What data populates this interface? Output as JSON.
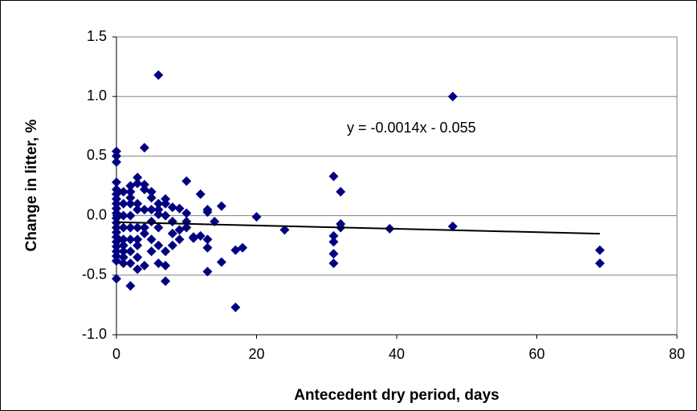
{
  "chart_data": {
    "type": "scatter",
    "x_label": "Antecedent dry period, days",
    "y_label": "Change in litter, %",
    "color": "#000080",
    "grid": true,
    "xlim": [
      0,
      80
    ],
    "xticks": [
      0,
      20,
      40,
      60,
      80
    ],
    "ylim": [
      -1,
      1.5
    ],
    "yticks": [
      {
        "value": -1,
        "label": "-1.0"
      },
      -0.5,
      {
        "value": 0,
        "label": "0.0"
      },
      0.5,
      {
        "value": 1,
        "label": "1.0"
      },
      1.5
    ],
    "trendline": {
      "label": "y = -0.0014x - 0.055",
      "slope": -0.0014,
      "intercept": -0.055
    },
    "series": [
      {
        "x": [
          6,
          48,
          4,
          0,
          0,
          0,
          31,
          32,
          10,
          3,
          12,
          15,
          20,
          24,
          31,
          31,
          31,
          31,
          32,
          32,
          39,
          48,
          69,
          69,
          17,
          2,
          7,
          0,
          13,
          15,
          17,
          18,
          13,
          13,
          11,
          14,
          13,
          13,
          10,
          9,
          8,
          7,
          7,
          6,
          6,
          6,
          5,
          4,
          4,
          3,
          2,
          2,
          2,
          2,
          2,
          2,
          2,
          3,
          3,
          4,
          5,
          5,
          6,
          6,
          7,
          8,
          8,
          9,
          10,
          10,
          11,
          12,
          3,
          4,
          4,
          5,
          5,
          3,
          3,
          1,
          1,
          1,
          1,
          1,
          1,
          1,
          1,
          1,
          0,
          0,
          0,
          0,
          0,
          0,
          0,
          0,
          0,
          0,
          0,
          0,
          0,
          0,
          0,
          0,
          0,
          2,
          3,
          3,
          6,
          7,
          7,
          8,
          9,
          4,
          5,
          2
        ],
        "y": [
          1.18,
          1.0,
          0.57,
          0.54,
          0.5,
          0.45,
          0.33,
          0.2,
          0.29,
          0.32,
          0.18,
          0.08,
          -0.01,
          -0.12,
          -0.17,
          -0.22,
          -0.32,
          -0.4,
          -0.07,
          -0.1,
          -0.11,
          -0.09,
          -0.29,
          -0.4,
          -0.77,
          -0.59,
          -0.55,
          -0.53,
          -0.47,
          -0.39,
          -0.29,
          -0.27,
          -0.27,
          -0.2,
          -0.19,
          -0.05,
          0.03,
          0.05,
          0.02,
          0.06,
          0.07,
          0.14,
          0.1,
          0.1,
          0.05,
          0.01,
          0.2,
          0.22,
          0.26,
          0.27,
          0.25,
          0.2,
          0.1,
          0.0,
          -0.1,
          -0.2,
          -0.3,
          -0.35,
          -0.45,
          -0.42,
          -0.3,
          -0.2,
          -0.25,
          -0.4,
          -0.42,
          -0.25,
          -0.15,
          -0.12,
          -0.05,
          -0.1,
          -0.18,
          -0.17,
          -0.25,
          -0.1,
          -0.15,
          -0.05,
          0.05,
          0.1,
          0.05,
          0.2,
          0.1,
          0.0,
          -0.1,
          -0.2,
          -0.3,
          -0.4,
          -0.35,
          -0.25,
          0.28,
          0.22,
          0.18,
          0.14,
          0.1,
          0.06,
          0.02,
          -0.02,
          -0.06,
          -0.1,
          -0.14,
          -0.18,
          -0.22,
          -0.26,
          -0.3,
          -0.34,
          -0.38,
          -0.4,
          -0.1,
          -0.2,
          -0.1,
          -0.3,
          0.0,
          -0.05,
          -0.2,
          0.05,
          0.15,
          0.15
        ]
      }
    ]
  }
}
